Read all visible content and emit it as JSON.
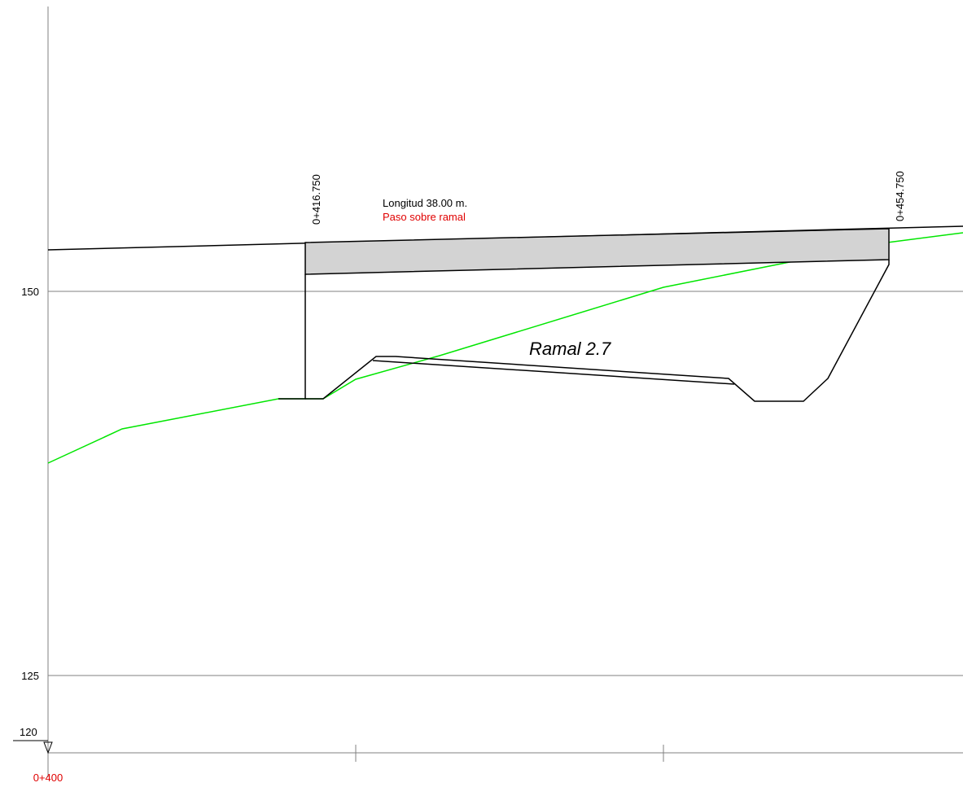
{
  "profile": {
    "axis": {
      "elevation_labels": [
        "150",
        "125",
        "120"
      ],
      "station_origin": "0+400"
    },
    "structure": {
      "start_station": "0+416.750",
      "end_station": "0+454.750",
      "length_label": "Longitud 38.00 m.",
      "type_label": "Paso sobre ramal",
      "deck_fill_color": "#d3d3d3"
    },
    "crossing_label": "Ramal 2.7",
    "colors": {
      "grid": "#808080",
      "terrain": "#00e600",
      "lines": "#000000",
      "station_text": "#e00000"
    }
  }
}
